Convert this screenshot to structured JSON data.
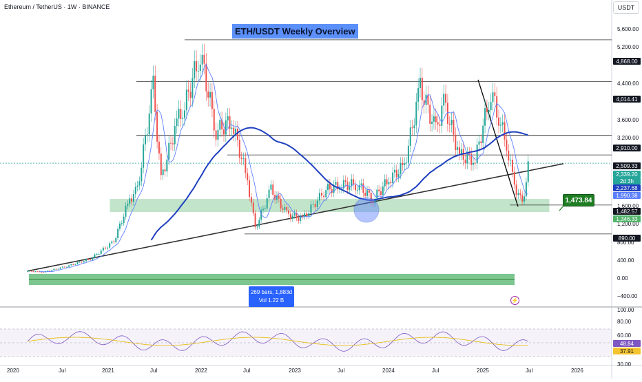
{
  "header": {
    "symbol_title": "Ethereum / TetherUS · 1W · BINANCE",
    "currency": "USDT"
  },
  "overlay_title": "ETH/USDT Weekly Overview",
  "range_stats": {
    "line1": "269 bars, 1,883d",
    "line2": "Vol 1.22 B"
  },
  "callout_price": "1,473.84",
  "colors": {
    "up": "#26a69a",
    "down": "#ef5350",
    "ma_fast": "#5b7fff",
    "ma_slow": "#1e3fbf",
    "zone": "#52b36a",
    "trend": "#333333",
    "rsi": "#7e57c2",
    "rsi_ma": "#e6b800"
  },
  "price_axis": {
    "tick_labels": [
      "5,600.00",
      "5,200.00",
      "4,400.00",
      "3,600.00",
      "3,200.00",
      "1,600.00",
      "1,200.00",
      "800.00",
      "400.00",
      "0.00",
      "−400.00"
    ],
    "tags": [
      {
        "label": "4,868.00",
        "style": "line"
      },
      {
        "label": "4,014.41",
        "style": "line"
      },
      {
        "label": "2,910.00",
        "style": "line"
      },
      {
        "label": "2,509.33",
        "style": "line"
      },
      {
        "label": "2,339.20",
        "style": "price"
      },
      {
        "label": "2d 3h",
        "style": "price"
      },
      {
        "label": "2,237.68",
        "style": "ma_slow"
      },
      {
        "label": "1,990.38",
        "style": "ma_fast"
      },
      {
        "label": "1,482.57",
        "style": "line"
      },
      {
        "label": "1,346.33",
        "style": "zone"
      },
      {
        "label": "890.00",
        "style": "line"
      }
    ]
  },
  "rsi_axis": {
    "tick_labels": [
      "100.00",
      "80.00",
      "60.00",
      "30.00"
    ],
    "tags": [
      {
        "label": "48.84",
        "style": "rsi"
      },
      {
        "label": "37.91",
        "style": "rsi_ma"
      }
    ]
  },
  "time_axis": [
    "2020",
    "Jul",
    "2021",
    "Jul",
    "2022",
    "Jul",
    "2023",
    "Jul",
    "2024",
    "Jul",
    "2025",
    "Jul",
    "2026"
  ],
  "chart_data": {
    "type": "candlestick",
    "title": "ETH/USDT Weekly Overview",
    "interval": "1W",
    "horizontal_levels": [
      4868,
      4014.41,
      2910,
      2509.33,
      1482.57,
      890
    ],
    "support_zone": [
      1346.33,
      1600
    ],
    "trendline": [
      {
        "x": "2020-01",
        "y": 130
      },
      {
        "x": "2025-09",
        "y": 2330
      }
    ],
    "current_price": 2339.2,
    "moving_averages": {
      "MA_fast": 1990.38,
      "MA_slow": 2237.68
    },
    "rsi": {
      "value": 48.84,
      "ma": 37.91,
      "bands": [
        30,
        70
      ]
    },
    "price_path": [
      [
        "2020-01",
        130
      ],
      [
        "2020-03",
        110
      ],
      [
        "2020-06",
        230
      ],
      [
        "2020-09",
        380
      ],
      [
        "2020-12",
        740
      ],
      [
        "2021-02",
        1600
      ],
      [
        "2021-03",
        1800
      ],
      [
        "2021-05",
        3900
      ],
      [
        "2021-06",
        2000
      ],
      [
        "2021-08",
        3200
      ],
      [
        "2021-09",
        3500
      ],
      [
        "2021-11",
        4600
      ],
      [
        "2022-01",
        3000
      ],
      [
        "2022-03",
        3200
      ],
      [
        "2022-05",
        2000
      ],
      [
        "2022-06",
        1000
      ],
      [
        "2022-08",
        1800
      ],
      [
        "2022-10",
        1300
      ],
      [
        "2022-12",
        1200
      ],
      [
        "2023-03",
        1800
      ],
      [
        "2023-05",
        1900
      ],
      [
        "2023-07",
        1900
      ],
      [
        "2023-09",
        1600
      ],
      [
        "2023-11",
        2000
      ],
      [
        "2024-01",
        2300
      ],
      [
        "2024-03",
        3900
      ],
      [
        "2024-05",
        3000
      ],
      [
        "2024-06",
        3600
      ],
      [
        "2024-08",
        2500
      ],
      [
        "2024-10",
        2400
      ],
      [
        "2024-12",
        3800
      ],
      [
        "2025-01",
        3300
      ],
      [
        "2025-02",
        2700
      ],
      [
        "2025-03",
        1900
      ],
      [
        "2025-04",
        1500
      ],
      [
        "2025-05",
        2500
      ]
    ]
  }
}
